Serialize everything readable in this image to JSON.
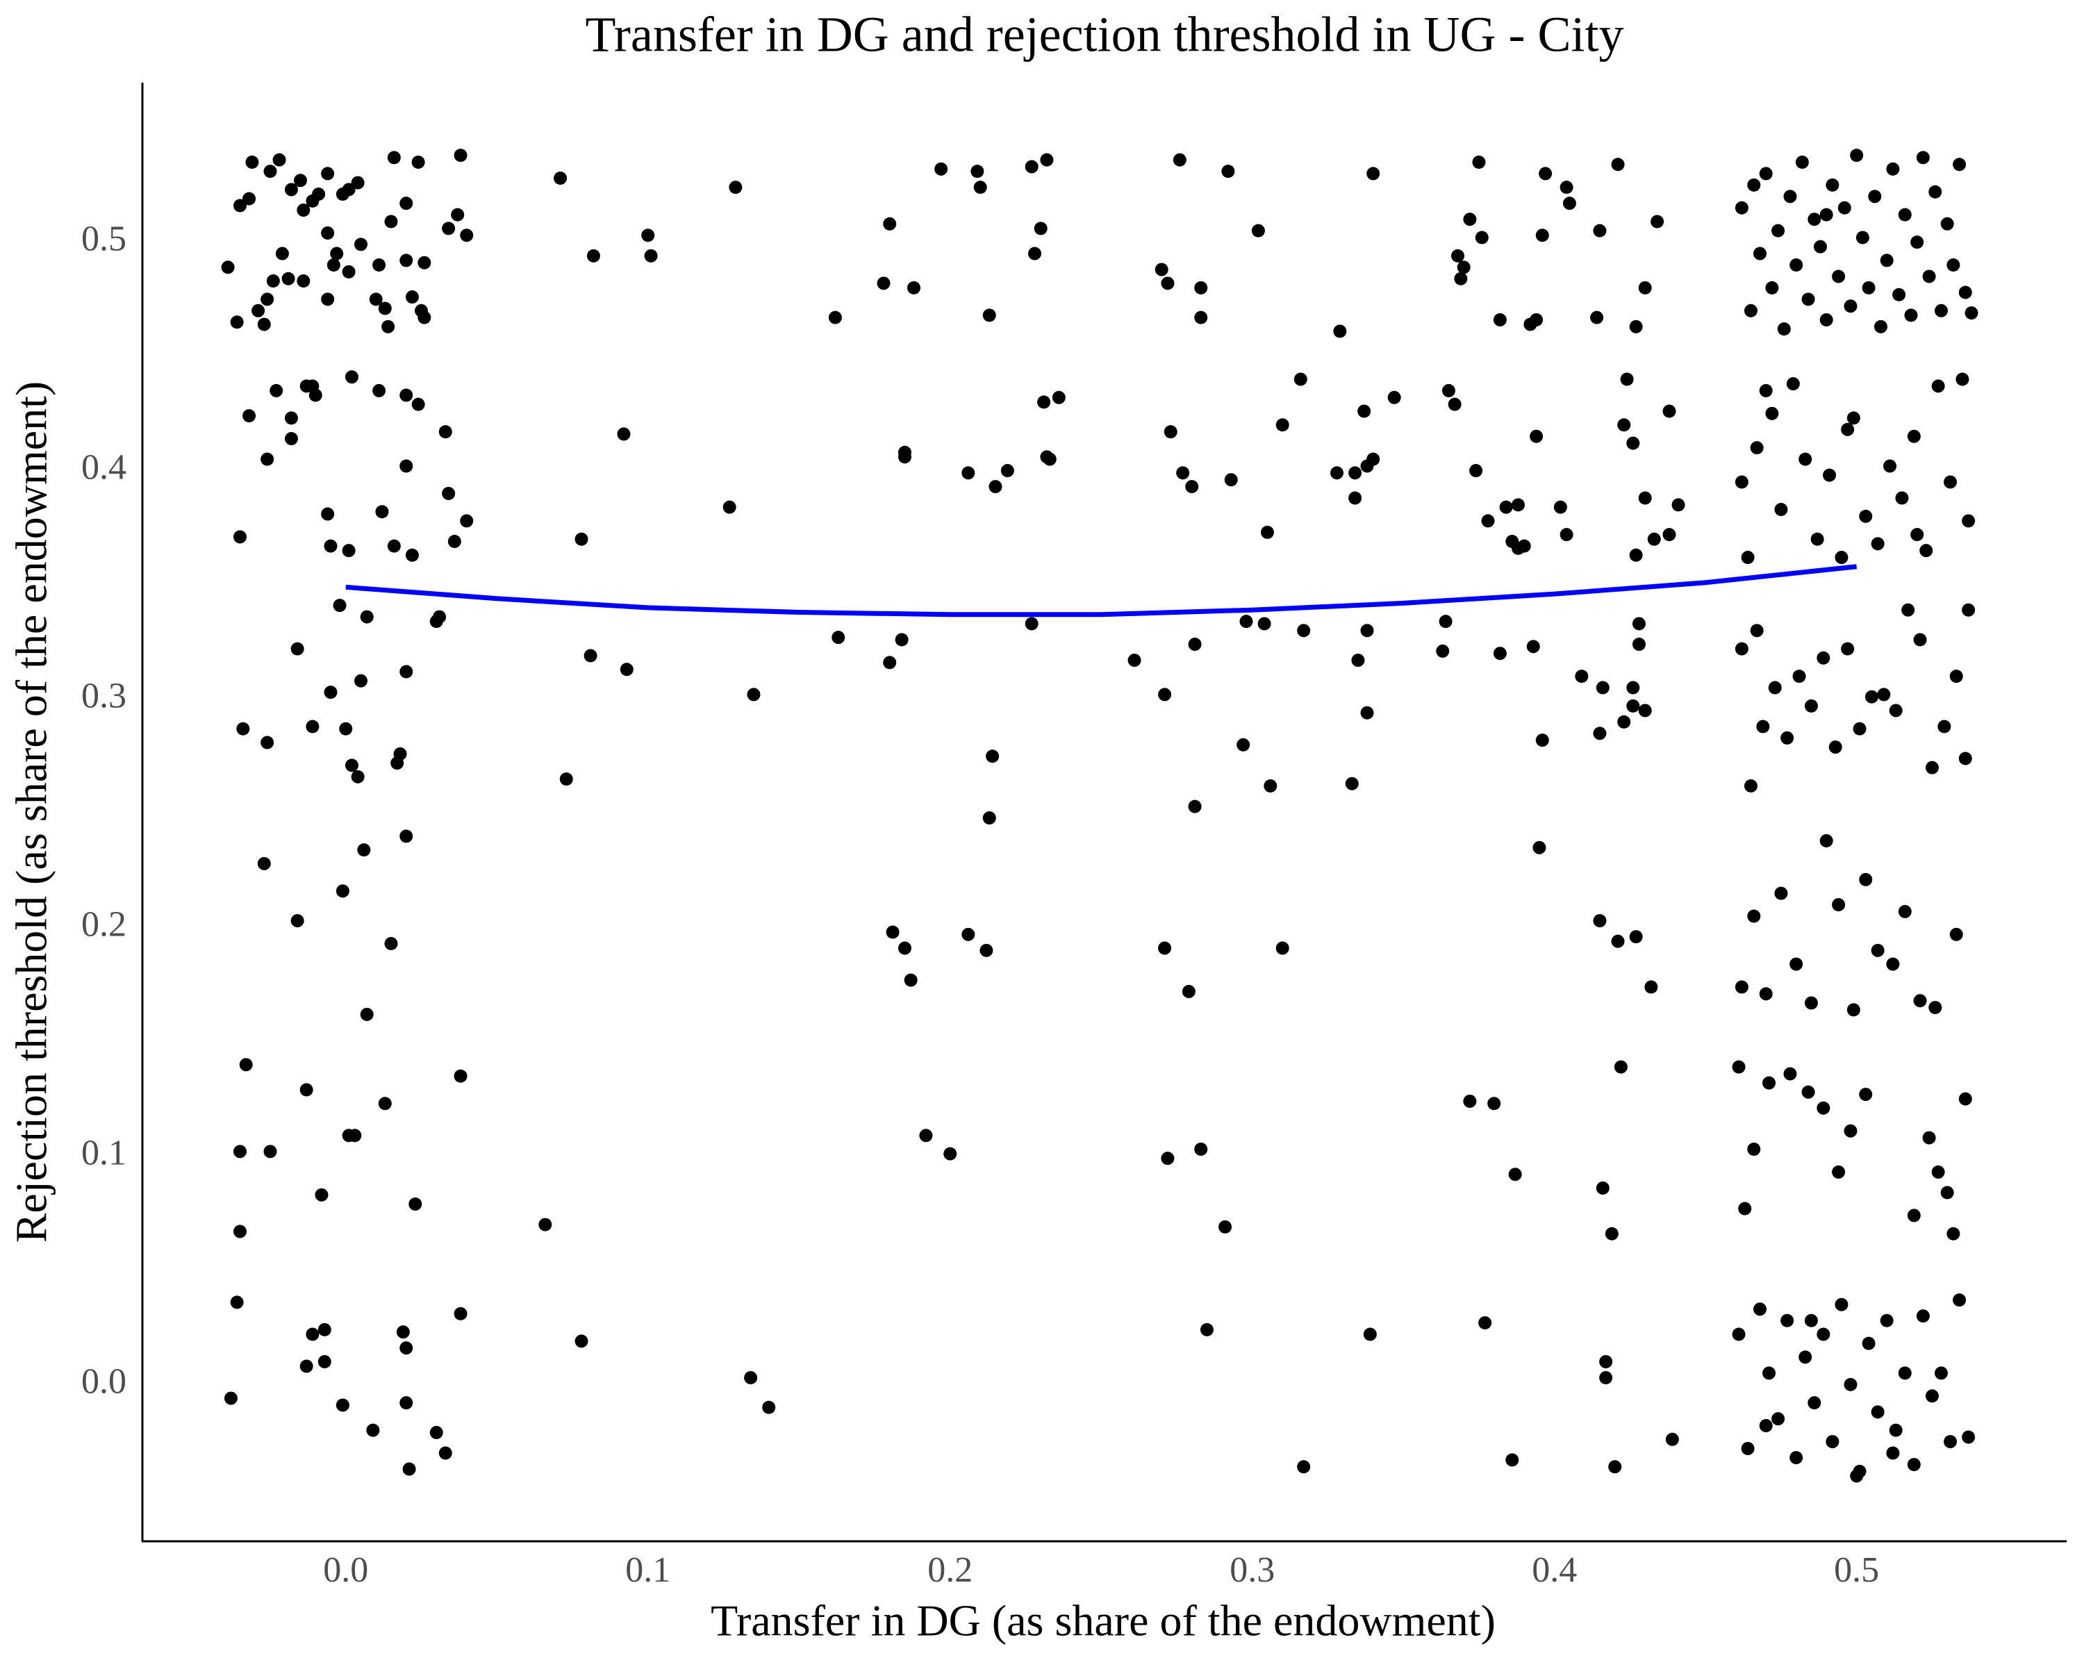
{
  "chart_data": {
    "type": "scatter",
    "title": "Transfer in DG and rejection threshold in UG - City",
    "x_label": "Transfer in DG (as share of the endowment)",
    "y_label": "Rejection threshold (as share of the endowment)",
    "xlim": [
      -0.0673,
      0.5695
    ],
    "ylim": [
      -0.0686,
      0.5698
    ],
    "xticks": [
      {
        "value": 0,
        "label": "0.0"
      },
      0.1,
      0.2,
      0.3,
      0.4,
      0.5
    ],
    "yticks": [
      {
        "value": 0,
        "label": "0.0"
      },
      0.1,
      0.2,
      0.3,
      0.4,
      0.5
    ],
    "grid": false,
    "series": [
      {
        "type": "scatter",
        "color": "#000000",
        "x": [
          -0.039,
          -0.036,
          -0.035,
          -0.031,
          -0.032,
          -0.029,
          -0.027,
          -0.026,
          -0.025,
          -0.022,
          -0.021,
          -0.024,
          -0.019,
          -0.018,
          -0.014,
          -0.014,
          -0.015,
          -0.011,
          -0.009,
          -0.006,
          -0.006,
          -0.006,
          -0.003,
          -0.001,
          0.001,
          0.004,
          0.005,
          0.01,
          0.011,
          0.013,
          0.014,
          0.016,
          0.015,
          0.02,
          0.02,
          0.022,
          0.024,
          0.025,
          0.026,
          0.026,
          0.034,
          0.037,
          0.038,
          0.04,
          0.001,
          -0.004,
          -0.035,
          -0.032,
          -0.026,
          -0.023,
          -0.018,
          -0.018,
          -0.013,
          -0.011,
          -0.01,
          -0.006,
          -0.005,
          0.001,
          0.002,
          0.011,
          0.012,
          0.016,
          0.02,
          0.02,
          0.022,
          0.024,
          0.033,
          0.034,
          0.036,
          0.04,
          -0.034,
          -0.026,
          -0.016,
          -0.011,
          -0.005,
          -0.002,
          0.0,
          0.002,
          0.004,
          0.005,
          0.007,
          0.017,
          0.018,
          0.02,
          0.03,
          0.031,
          -0.027,
          -0.016,
          -0.001,
          0.006,
          0.015,
          0.007,
          0.02,
          -0.033,
          -0.035,
          -0.035,
          -0.025,
          -0.013,
          -0.008,
          0.001,
          0.003,
          0.013,
          0.023,
          0.038,
          -0.036,
          -0.038,
          -0.011,
          -0.007,
          -0.013,
          -0.007,
          -0.001,
          0.009,
          0.019,
          0.02,
          0.02,
          0.021,
          0.03,
          0.033,
          0.038,
          0.071,
          0.082,
          0.1,
          0.101,
          0.129,
          0.162,
          0.178,
          0.18,
          0.188,
          0.197,
          0.209,
          0.21,
          0.213,
          0.227,
          0.232,
          0.23,
          0.228,
          0.276,
          0.292,
          0.302,
          0.27,
          0.272,
          0.283,
          0.283,
          0.329,
          0.34,
          0.375,
          0.372,
          0.376,
          0.368,
          0.37,
          0.369,
          0.382,
          0.397,
          0.404,
          0.405,
          0.396,
          0.394,
          0.392,
          0.415,
          0.421,
          0.414,
          0.427,
          0.43,
          0.434,
          0.092,
          0.078,
          0.127,
          0.185,
          0.185,
          0.206,
          0.215,
          0.219,
          0.231,
          0.236,
          0.232,
          0.233,
          0.273,
          0.277,
          0.28,
          0.293,
          0.305,
          0.31,
          0.316,
          0.328,
          0.334,
          0.334,
          0.338,
          0.34,
          0.337,
          0.347,
          0.365,
          0.367,
          0.374,
          0.378,
          0.384,
          0.388,
          0.386,
          0.388,
          0.39,
          0.394,
          0.402,
          0.404,
          0.424,
          0.423,
          0.426,
          0.43,
          0.433,
          0.438,
          0.438,
          0.441,
          0.427,
          0.073,
          0.081,
          0.093,
          0.135,
          0.163,
          0.18,
          0.184,
          0.214,
          0.213,
          0.227,
          0.261,
          0.271,
          0.281,
          0.281,
          0.297,
          0.298,
          0.304,
          0.306,
          0.317,
          0.333,
          0.335,
          0.338,
          0.338,
          0.364,
          0.363,
          0.382,
          0.393,
          0.396,
          0.409,
          0.415,
          0.416,
          0.423,
          0.426,
          0.426,
          0.428,
          0.428,
          0.43,
          0.181,
          0.185,
          0.187,
          0.206,
          0.212,
          0.271,
          0.279,
          0.31,
          0.395,
          0.415,
          0.421,
          0.427,
          0.432,
          0.192,
          0.2,
          0.272,
          0.283,
          0.291,
          0.372,
          0.38,
          0.387,
          0.416,
          0.419,
          0.422,
          0.066,
          0.078,
          0.134,
          0.14,
          0.285,
          0.317,
          0.339,
          0.377,
          0.386,
          0.417,
          0.417,
          0.42,
          0.439,
          0.462,
          0.465,
          0.468,
          0.47,
          0.472,
          0.474,
          0.476,
          0.478,
          0.48,
          0.482,
          0.484,
          0.486,
          0.488,
          0.49,
          0.492,
          0.494,
          0.496,
          0.498,
          0.5,
          0.502,
          0.504,
          0.506,
          0.508,
          0.51,
          0.512,
          0.514,
          0.516,
          0.518,
          0.52,
          0.522,
          0.524,
          0.526,
          0.528,
          0.53,
          0.532,
          0.534,
          0.536,
          0.538,
          0.466,
          0.49,
          0.462,
          0.464,
          0.467,
          0.472,
          0.475,
          0.479,
          0.483,
          0.487,
          0.491,
          0.495,
          0.499,
          0.503,
          0.507,
          0.511,
          0.515,
          0.519,
          0.523,
          0.527,
          0.531,
          0.535,
          0.537,
          0.47,
          0.497,
          0.52,
          0.462,
          0.465,
          0.469,
          0.473,
          0.477,
          0.481,
          0.485,
          0.489,
          0.493,
          0.497,
          0.501,
          0.505,
          0.509,
          0.513,
          0.517,
          0.521,
          0.525,
          0.529,
          0.533,
          0.537,
          0.536,
          0.467,
          0.462,
          0.466,
          0.47,
          0.475,
          0.48,
          0.485,
          0.49,
          0.494,
          0.499,
          0.503,
          0.507,
          0.512,
          0.516,
          0.521,
          0.526,
          0.533,
          0.461,
          0.463,
          0.466,
          0.471,
          0.478,
          0.484,
          0.489,
          0.494,
          0.498,
          0.503,
          0.519,
          0.524,
          0.527,
          0.53,
          0.532,
          0.536,
          0.461,
          0.464,
          0.468,
          0.471,
          0.474,
          0.477,
          0.48,
          0.483,
          0.486,
          0.489,
          0.492,
          0.495,
          0.498,
          0.501,
          0.504,
          0.507,
          0.51,
          0.513,
          0.516,
          0.519,
          0.522,
          0.525,
          0.528,
          0.531,
          0.534,
          0.537,
          0.5,
          0.485,
          0.47,
          0.512
        ],
        "y": [
          0.489,
          0.465,
          0.516,
          0.535,
          0.519,
          0.47,
          0.464,
          0.475,
          0.531,
          0.536,
          0.495,
          0.483,
          0.484,
          0.523,
          0.483,
          0.514,
          0.527,
          0.518,
          0.521,
          0.53,
          0.504,
          0.475,
          0.495,
          0.521,
          0.487,
          0.526,
          0.499,
          0.475,
          0.49,
          0.471,
          0.463,
          0.537,
          0.509,
          0.517,
          0.492,
          0.476,
          0.535,
          0.47,
          0.491,
          0.467,
          0.506,
          0.512,
          0.538,
          0.503,
          0.523,
          0.49,
          0.371,
          0.424,
          0.405,
          0.435,
          0.423,
          0.414,
          0.437,
          0.437,
          0.433,
          0.381,
          0.367,
          0.365,
          0.441,
          0.435,
          0.382,
          0.367,
          0.402,
          0.433,
          0.363,
          0.429,
          0.417,
          0.39,
          0.369,
          0.378,
          0.287,
          0.281,
          0.322,
          0.288,
          0.303,
          0.341,
          0.287,
          0.271,
          0.266,
          0.308,
          0.336,
          0.272,
          0.276,
          0.312,
          0.334,
          0.336,
          0.228,
          0.203,
          0.216,
          0.234,
          0.193,
          0.162,
          0.24,
          0.14,
          0.102,
          0.067,
          0.102,
          0.129,
          0.083,
          0.109,
          0.109,
          0.123,
          0.079,
          0.135,
          0.036,
          -0.006,
          0.022,
          0.024,
          0.008,
          0.01,
          -0.009,
          -0.02,
          0.023,
          0.016,
          -0.008,
          -0.037,
          -0.021,
          -0.03,
          0.031,
          0.528,
          0.494,
          0.503,
          0.494,
          0.524,
          0.467,
          0.482,
          0.508,
          0.48,
          0.532,
          0.531,
          0.524,
          0.468,
          0.533,
          0.536,
          0.506,
          0.495,
          0.536,
          0.531,
          0.505,
          0.488,
          0.482,
          0.48,
          0.467,
          0.461,
          0.53,
          0.535,
          0.51,
          0.502,
          0.494,
          0.489,
          0.484,
          0.466,
          0.53,
          0.524,
          0.517,
          0.503,
          0.466,
          0.464,
          0.505,
          0.534,
          0.467,
          0.463,
          0.48,
          0.509,
          0.416,
          0.37,
          0.384,
          0.408,
          0.406,
          0.399,
          0.393,
          0.4,
          0.43,
          0.432,
          0.406,
          0.405,
          0.417,
          0.399,
          0.393,
          0.396,
          0.373,
          0.42,
          0.44,
          0.399,
          0.399,
          0.388,
          0.402,
          0.405,
          0.426,
          0.432,
          0.435,
          0.429,
          0.4,
          0.378,
          0.384,
          0.385,
          0.369,
          0.366,
          0.367,
          0.415,
          0.384,
          0.372,
          0.44,
          0.42,
          0.412,
          0.388,
          0.37,
          0.426,
          0.372,
          0.385,
          0.363,
          0.265,
          0.319,
          0.313,
          0.302,
          0.327,
          0.316,
          0.326,
          0.275,
          0.248,
          0.333,
          0.317,
          0.302,
          0.253,
          0.324,
          0.28,
          0.334,
          0.333,
          0.262,
          0.33,
          0.263,
          0.317,
          0.294,
          0.33,
          0.334,
          0.321,
          0.32,
          0.323,
          0.282,
          0.31,
          0.285,
          0.305,
          0.29,
          0.305,
          0.297,
          0.333,
          0.324,
          0.295,
          0.198,
          0.191,
          0.177,
          0.197,
          0.19,
          0.191,
          0.172,
          0.191,
          0.235,
          0.203,
          0.194,
          0.196,
          0.174,
          0.109,
          0.101,
          0.099,
          0.103,
          0.069,
          0.124,
          0.123,
          0.092,
          0.086,
          0.066,
          0.139,
          0.07,
          0.019,
          0.003,
          -0.01,
          0.024,
          -0.036,
          0.022,
          0.027,
          -0.033,
          0.01,
          0.003,
          -0.036,
          -0.024,
          0.515,
          0.47,
          0.495,
          0.53,
          0.48,
          0.505,
          0.462,
          0.52,
          0.49,
          0.535,
          0.475,
          0.51,
          0.498,
          0.466,
          0.525,
          0.485,
          0.515,
          0.472,
          0.538,
          0.502,
          0.48,
          0.52,
          0.463,
          0.492,
          0.532,
          0.477,
          0.512,
          0.468,
          0.5,
          0.537,
          0.485,
          0.522,
          0.47,
          0.508,
          0.49,
          0.534,
          0.478,
          0.469,
          0.525,
          0.512,
          0.395,
          0.362,
          0.41,
          0.425,
          0.383,
          0.438,
          0.405,
          0.37,
          0.398,
          0.362,
          0.423,
          0.38,
          0.368,
          0.402,
          0.388,
          0.415,
          0.365,
          0.437,
          0.395,
          0.44,
          0.378,
          0.435,
          0.418,
          0.372,
          0.322,
          0.262,
          0.288,
          0.305,
          0.283,
          0.31,
          0.297,
          0.318,
          0.279,
          0.322,
          0.287,
          0.301,
          0.302,
          0.295,
          0.339,
          0.326,
          0.27,
          0.288,
          0.31,
          0.339,
          0.274,
          0.33,
          0.174,
          0.205,
          0.171,
          0.215,
          0.184,
          0.167,
          0.238,
          0.21,
          0.164,
          0.221,
          0.19,
          0.184,
          0.207,
          0.168,
          0.165,
          0.197,
          0.139,
          0.077,
          0.103,
          0.132,
          0.136,
          0.128,
          0.121,
          0.093,
          0.111,
          0.127,
          0.074,
          0.108,
          0.093,
          0.084,
          0.066,
          0.125,
          0.022,
          -0.028,
          0.033,
          0.005,
          -0.015,
          0.028,
          -0.032,
          0.012,
          -0.008,
          0.022,
          -0.025,
          0.035,
          0.0,
          -0.038,
          0.018,
          -0.012,
          0.028,
          -0.02,
          0.005,
          -0.035,
          0.03,
          -0.005,
          0.005,
          -0.025,
          0.037,
          -0.023,
          -0.04,
          0.028,
          -0.018,
          -0.03
        ]
      },
      {
        "type": "line",
        "color": "#0000ff",
        "x": [
          0,
          0.05,
          0.1,
          0.15,
          0.2,
          0.25,
          0.3,
          0.35,
          0.4,
          0.45,
          0.5
        ],
        "y": [
          0.349,
          0.344,
          0.34,
          0.338,
          0.337,
          0.337,
          0.339,
          0.342,
          0.346,
          0.351,
          0.358
        ]
      }
    ]
  }
}
